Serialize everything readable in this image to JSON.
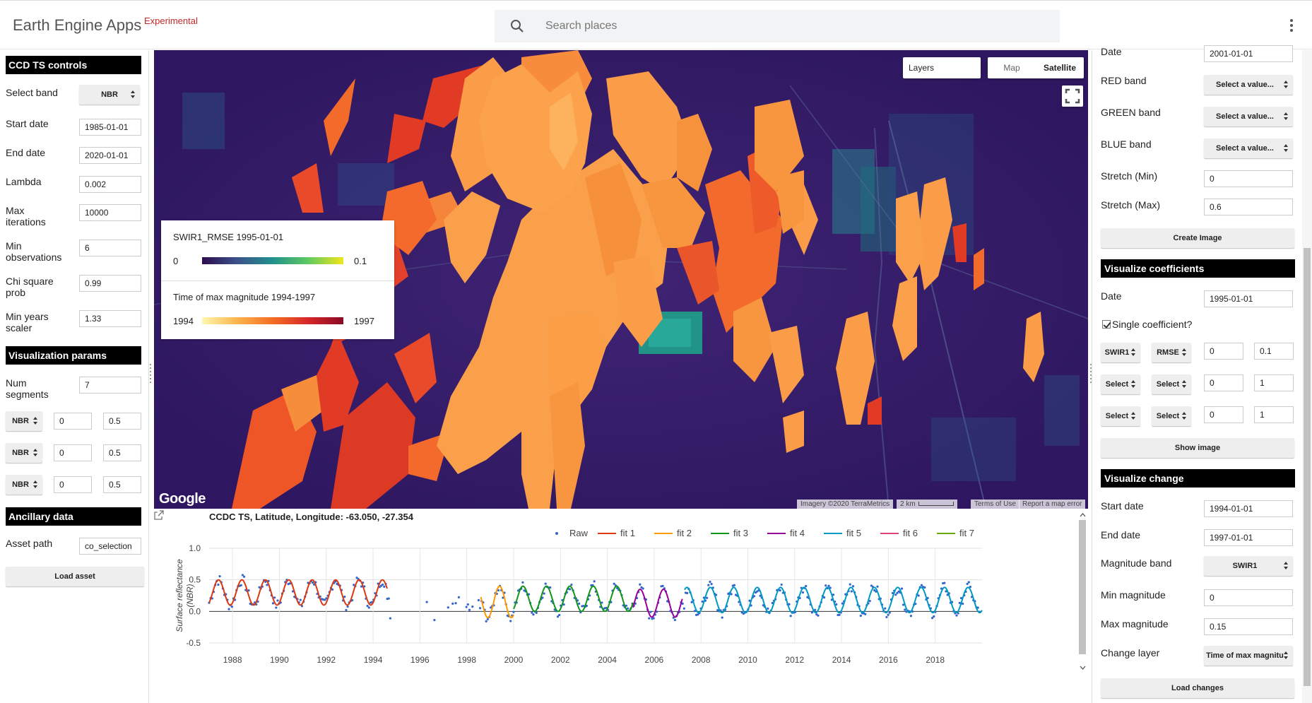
{
  "header": {
    "title": "Earth Engine Apps",
    "badge": "Experimental",
    "search_placeholder": "Search places"
  },
  "left": {
    "ccd_header": "CCD TS controls",
    "select_band_label": "Select band",
    "select_band_value": "NBR",
    "start_date_label": "Start date",
    "start_date_value": "1985-01-01",
    "end_date_label": "End date",
    "end_date_value": "2020-01-01",
    "lambda_label": "Lambda",
    "lambda_value": "0.002",
    "max_iter_label": "Max iterations",
    "max_iter_value": "10000",
    "min_obs_label": "Min observations",
    "min_obs_value": "6",
    "chisq_label": "Chi square prob",
    "chisq_value": "0.99",
    "min_years_label": "Min years scaler",
    "min_years_value": "1.33",
    "vis_header": "Visualization params",
    "num_seg_label": "Num segments",
    "num_seg_value": "7",
    "rows": [
      {
        "band": "NBR",
        "min": "0",
        "max": "0.5"
      },
      {
        "band": "NBR",
        "min": "0",
        "max": "0.5"
      },
      {
        "band": "NBR",
        "min": "0",
        "max": "0.5"
      }
    ],
    "ancillary_header": "Ancillary data",
    "asset_label": "Asset path",
    "asset_value": "co_selection",
    "load_asset": "Load asset"
  },
  "map": {
    "layers_label": "Layers",
    "map_label": "Map",
    "satellite_label": "Satellite",
    "legend1_title": "SWIR1_RMSE 1995-01-01",
    "legend1_min": "0",
    "legend1_max": "0.1",
    "legend2_title": "Time of max magnitude 1994-1997",
    "legend2_min": "1994",
    "legend2_max": "1997",
    "google": "Google",
    "imagery": "Imagery ©2020 TerraMetrics",
    "scale": "2 km",
    "terms": "Terms of Use",
    "report": "Report a map error"
  },
  "chart_data": {
    "type": "line",
    "title": "CCDC TS, Latitude, Longitude: -63.050, -27.354",
    "ylabel": "Surface reflectance (NBR)",
    "xlabel": "",
    "ylim": [
      -0.5,
      1.0
    ],
    "xlim": [
      1987.0,
      2020.0
    ],
    "y_ticks": [
      "1.0",
      "0.5",
      "0.0",
      "-0.5"
    ],
    "x_ticks": [
      "1988",
      "1990",
      "1992",
      "1994",
      "1996",
      "1998",
      "2000",
      "2002",
      "2004",
      "2006",
      "2008",
      "2010",
      "2012",
      "2014",
      "2016",
      "2018"
    ],
    "legend_position": "top",
    "series": [
      {
        "name": "Raw",
        "color": "#3366cc",
        "kind": "scatter",
        "x_range": [
          1987.0,
          2019.95
        ]
      },
      {
        "name": "fit 1",
        "color": "#dc3912",
        "x_range": [
          1987.0,
          1994.6
        ],
        "amplitude": 0.2,
        "offset": 0.3
      },
      {
        "name": "fit 2",
        "color": "#ff9900",
        "x_range": [
          1998.6,
          2000.0
        ],
        "amplitude": 0.25,
        "offset": 0.15
      },
      {
        "name": "fit 3",
        "color": "#109618",
        "x_range": [
          2000.0,
          2005.1
        ],
        "amplitude": 0.2,
        "offset": 0.2
      },
      {
        "name": "fit 4",
        "color": "#990099",
        "x_range": [
          2005.1,
          2007.2
        ],
        "amplitude": 0.22,
        "offset": 0.13
      },
      {
        "name": "fit 5",
        "color": "#0099c6",
        "x_range": [
          2007.3,
          2020.0
        ],
        "amplitude": 0.2,
        "offset": 0.18
      },
      {
        "name": "fit 6",
        "color": "#dd4477",
        "x_range": [],
        "amplitude": 0,
        "offset": 0
      },
      {
        "name": "fit 7",
        "color": "#66aa00",
        "x_range": [],
        "amplitude": 0,
        "offset": 0
      }
    ]
  },
  "right": {
    "date_label": "Date",
    "date_value": "2001-01-01",
    "red_label": "RED band",
    "green_label": "GREEN band",
    "blue_label": "BLUE band",
    "select_placeholder": "Select a value...",
    "stretch_min_label": "Stretch (Min)",
    "stretch_min_value": "0",
    "stretch_max_label": "Stretch (Max)",
    "stretch_max_value": "0.6",
    "create_image": "Create Image",
    "coef_header": "Visualize coefficients",
    "coef_date_label": "Date",
    "coef_date_value": "1995-01-01",
    "single_coef_label": "Single coefficient?",
    "coef_row1": {
      "band": "SWIR1",
      "coef": "RMSE",
      "min": "0",
      "max": "0.1"
    },
    "coef_row2": {
      "band": "Select",
      "coef": "Select",
      "min": "0",
      "max": "1"
    },
    "coef_row3": {
      "band": "Select",
      "coef": "Select",
      "min": "0",
      "max": "1"
    },
    "show_image": "Show image",
    "change_header": "Visualize change",
    "start_label": "Start date",
    "start_value": "1994-01-01",
    "end_label": "End date",
    "end_value": "1997-01-01",
    "mag_band_label": "Magnitude band",
    "mag_band_value": "SWIR1",
    "min_mag_label": "Min magnitude",
    "min_mag_value": "0",
    "max_mag_label": "Max magnitude",
    "max_mag_value": "0.15",
    "change_layer_label": "Change layer",
    "change_layer_value": "Time of max magnitu",
    "load_changes": "Load changes"
  }
}
